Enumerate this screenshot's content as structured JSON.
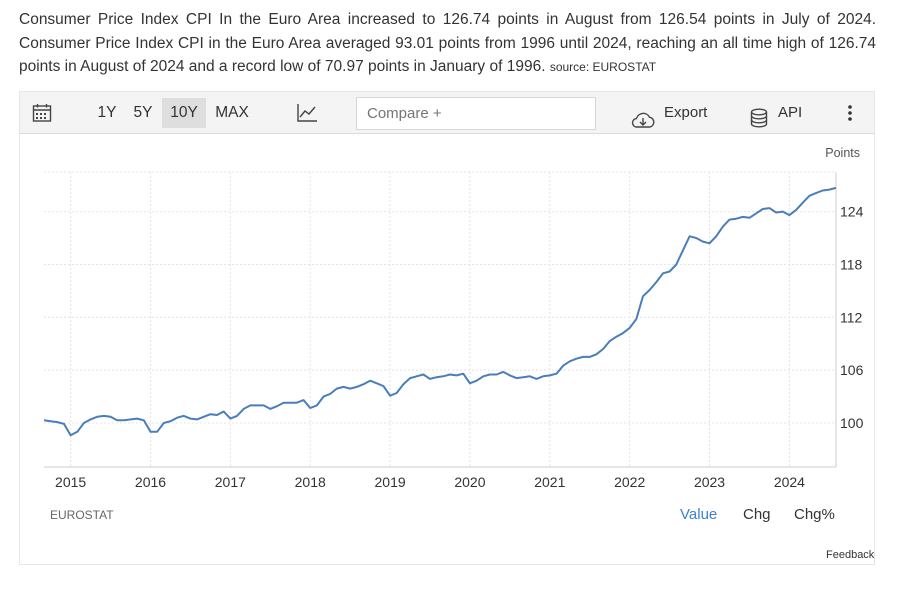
{
  "description": {
    "text": "Consumer Price Index CPI In the Euro Area increased to 126.74 points in August from 126.54 points in July of 2024. Consumer Price Index CPI in the Euro Area averaged 93.01 points from 1996 until 2024, reaching an all time high of 126.74 points in August of 2024 and a record low of 70.97 points in January of 1996.",
    "source": "source: EUROSTAT"
  },
  "toolbar": {
    "calendar_icon": "calendar-icon",
    "ranges": [
      "1Y",
      "5Y",
      "10Y",
      "MAX"
    ],
    "active_range": "10Y",
    "chart_type_icon": "line-chart-icon",
    "compare_placeholder": "Compare +",
    "export_label": "Export",
    "export_icon": "cloud-download-icon",
    "api_label": "API",
    "api_icon": "database-icon",
    "more_icon": "kebab-menu-icon"
  },
  "footer": {
    "source_label": "EUROSTAT",
    "modes": [
      "Value",
      "Chg",
      "Chg%"
    ],
    "active_mode": "Value",
    "feedback_label": "Feedback"
  },
  "colors": {
    "line": "#4a7ebb",
    "active_mode": "#3f80cf"
  },
  "chart_data": {
    "type": "line",
    "title": "",
    "units_label": "Points",
    "xlabel": "",
    "ylabel": "",
    "x_tick_labels": [
      "2015",
      "2016",
      "2017",
      "2018",
      "2019",
      "2020",
      "2021",
      "2022",
      "2023",
      "2024"
    ],
    "y_tick_labels": [
      "100",
      "106",
      "112",
      "118",
      "124"
    ],
    "y_ticks": [
      100,
      106,
      112,
      118,
      124
    ],
    "ylim": [
      95,
      128.5
    ],
    "xlim": [
      "2014-09",
      "2024-08"
    ],
    "grid": true,
    "y_axis_side": "right",
    "series": [
      {
        "name": "",
        "points": [
          [
            "2014-09",
            100.3
          ],
          [
            "2014-10",
            100.2
          ],
          [
            "2014-11",
            100.1
          ],
          [
            "2014-12",
            99.9
          ],
          [
            "2015-01",
            98.6
          ],
          [
            "2015-02",
            99.0
          ],
          [
            "2015-03",
            100.0
          ],
          [
            "2015-04",
            100.4
          ],
          [
            "2015-05",
            100.7
          ],
          [
            "2015-06",
            100.8
          ],
          [
            "2015-07",
            100.7
          ],
          [
            "2015-08",
            100.3
          ],
          [
            "2015-09",
            100.3
          ],
          [
            "2015-10",
            100.4
          ],
          [
            "2015-11",
            100.5
          ],
          [
            "2015-12",
            100.3
          ],
          [
            "2016-01",
            99.0
          ],
          [
            "2016-02",
            99.0
          ],
          [
            "2016-03",
            100.0
          ],
          [
            "2016-04",
            100.2
          ],
          [
            "2016-05",
            100.6
          ],
          [
            "2016-06",
            100.8
          ],
          [
            "2016-07",
            100.5
          ],
          [
            "2016-08",
            100.4
          ],
          [
            "2016-09",
            100.7
          ],
          [
            "2016-10",
            101.0
          ],
          [
            "2016-11",
            100.9
          ],
          [
            "2016-12",
            101.3
          ],
          [
            "2017-01",
            100.5
          ],
          [
            "2017-02",
            100.8
          ],
          [
            "2017-03",
            101.6
          ],
          [
            "2017-04",
            102.0
          ],
          [
            "2017-05",
            102.0
          ],
          [
            "2017-06",
            102.0
          ],
          [
            "2017-07",
            101.6
          ],
          [
            "2017-08",
            101.9
          ],
          [
            "2017-09",
            102.3
          ],
          [
            "2017-10",
            102.3
          ],
          [
            "2017-11",
            102.3
          ],
          [
            "2017-12",
            102.6
          ],
          [
            "2018-01",
            101.7
          ],
          [
            "2018-02",
            102.0
          ],
          [
            "2018-03",
            103.0
          ],
          [
            "2018-04",
            103.3
          ],
          [
            "2018-05",
            103.9
          ],
          [
            "2018-06",
            104.1
          ],
          [
            "2018-07",
            103.9
          ],
          [
            "2018-08",
            104.1
          ],
          [
            "2018-09",
            104.4
          ],
          [
            "2018-10",
            104.8
          ],
          [
            "2018-11",
            104.5
          ],
          [
            "2018-12",
            104.2
          ],
          [
            "2019-01",
            103.1
          ],
          [
            "2019-02",
            103.4
          ],
          [
            "2019-03",
            104.4
          ],
          [
            "2019-04",
            105.1
          ],
          [
            "2019-05",
            105.3
          ],
          [
            "2019-06",
            105.5
          ],
          [
            "2019-07",
            105.0
          ],
          [
            "2019-08",
            105.2
          ],
          [
            "2019-09",
            105.3
          ],
          [
            "2019-10",
            105.5
          ],
          [
            "2019-11",
            105.4
          ],
          [
            "2019-12",
            105.6
          ],
          [
            "2020-01",
            104.5
          ],
          [
            "2020-02",
            104.8
          ],
          [
            "2020-03",
            105.3
          ],
          [
            "2020-04",
            105.5
          ],
          [
            "2020-05",
            105.5
          ],
          [
            "2020-06",
            105.8
          ],
          [
            "2020-07",
            105.4
          ],
          [
            "2020-08",
            105.1
          ],
          [
            "2020-09",
            105.2
          ],
          [
            "2020-10",
            105.3
          ],
          [
            "2020-11",
            105.0
          ],
          [
            "2020-12",
            105.3
          ],
          [
            "2021-01",
            105.4
          ],
          [
            "2021-02",
            105.6
          ],
          [
            "2021-03",
            106.5
          ],
          [
            "2021-04",
            107.0
          ],
          [
            "2021-05",
            107.3
          ],
          [
            "2021-06",
            107.5
          ],
          [
            "2021-07",
            107.5
          ],
          [
            "2021-08",
            107.8
          ],
          [
            "2021-09",
            108.4
          ],
          [
            "2021-10",
            109.3
          ],
          [
            "2021-11",
            109.8
          ],
          [
            "2021-12",
            110.2
          ],
          [
            "2022-01",
            110.8
          ],
          [
            "2022-02",
            111.8
          ],
          [
            "2022-03",
            114.4
          ],
          [
            "2022-04",
            115.1
          ],
          [
            "2022-05",
            116.0
          ],
          [
            "2022-06",
            117.0
          ],
          [
            "2022-07",
            117.2
          ],
          [
            "2022-08",
            118.0
          ],
          [
            "2022-09",
            119.6
          ],
          [
            "2022-10",
            121.2
          ],
          [
            "2022-11",
            121.0
          ],
          [
            "2022-12",
            120.6
          ],
          [
            "2023-01",
            120.4
          ],
          [
            "2023-02",
            121.2
          ],
          [
            "2023-03",
            122.3
          ],
          [
            "2023-04",
            123.1
          ],
          [
            "2023-05",
            123.2
          ],
          [
            "2023-06",
            123.4
          ],
          [
            "2023-07",
            123.3
          ],
          [
            "2023-08",
            123.8
          ],
          [
            "2023-09",
            124.3
          ],
          [
            "2023-10",
            124.4
          ],
          [
            "2023-11",
            123.9
          ],
          [
            "2023-12",
            124.0
          ],
          [
            "2024-01",
            123.6
          ],
          [
            "2024-02",
            124.2
          ],
          [
            "2024-03",
            125.0
          ],
          [
            "2024-04",
            125.8
          ],
          [
            "2024-05",
            126.1
          ],
          [
            "2024-06",
            126.4
          ],
          [
            "2024-07",
            126.5
          ],
          [
            "2024-08",
            126.7
          ]
        ]
      }
    ]
  }
}
